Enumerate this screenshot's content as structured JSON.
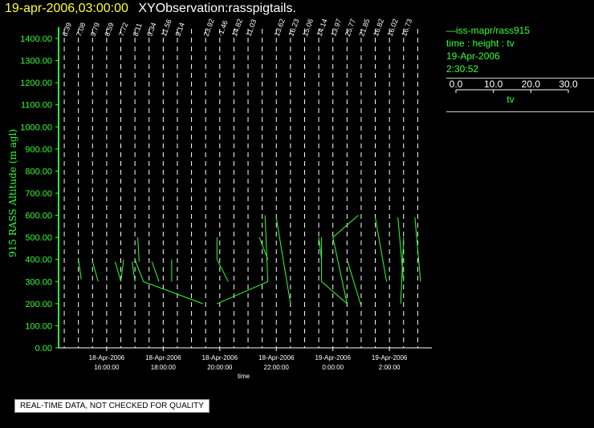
{
  "header": {
    "datetime": "19-apr-2006,03:00:00",
    "observation": "XYObservation:rasspigtails."
  },
  "legend": {
    "line_label": "iss-mapr/rass915",
    "variables": "time : height : tv",
    "date": "19-Apr-2006",
    "time": "2:30:52",
    "scale_ticks": [
      "0.0",
      "10.0",
      "20.0",
      "30.0"
    ],
    "scale_min": 0,
    "scale_max": 30,
    "scale_label": "tv"
  },
  "footer": {
    "quality_note": "REAL-TIME DATA, NOT CHECKED FOR QUALITY"
  },
  "colors": {
    "background": "#000000",
    "trace": "#33ff33",
    "axis": "#ffffff",
    "dashed_line": "#ffffff",
    "title_date": "#ffff33"
  },
  "chart_data": {
    "type": "line",
    "ylabel": "915 RASS Altitude (m agl)",
    "xlabel": "time",
    "ylim": [
      0,
      1450
    ],
    "yticks": [
      0,
      100,
      200,
      300,
      400,
      500,
      600,
      700,
      800,
      900,
      1000,
      1100,
      1200,
      1300,
      1400
    ],
    "ytick_labels": [
      "0.00",
      "100.00",
      "200.00",
      "300.00",
      "400.00",
      "500.00",
      "600.00",
      "700.00",
      "800.00",
      "900.00",
      "1000.00",
      "1100.00",
      "1200.00",
      "1300.00",
      "1400.00"
    ],
    "xlim_hours": [
      14.3,
      27.5
    ],
    "xticks": [
      {
        "hour": 16,
        "date": "18-Apr-2006",
        "time": "16:00:00"
      },
      {
        "hour": 18,
        "date": "18-Apr-2006",
        "time": "18:00:00"
      },
      {
        "hour": 20,
        "date": "18-Apr-2006",
        "time": "20:00:00"
      },
      {
        "hour": 22,
        "date": "18-Apr-2006",
        "time": "22:00:00"
      },
      {
        "hour": 24,
        "date": "19-Apr-2006",
        "time": "0:00:00"
      },
      {
        "hour": 26,
        "date": "19-Apr-2006",
        "time": "2:00:00"
      }
    ],
    "profile_times_hours": [
      14.5,
      15.0,
      15.5,
      16.0,
      16.5,
      17.0,
      17.5,
      18.0,
      18.5,
      19.0,
      19.5,
      20.0,
      20.5,
      21.0,
      21.5,
      22.0,
      22.5,
      23.0,
      23.5,
      24.0,
      24.5,
      25.0,
      25.5,
      26.0,
      26.5,
      27.0
    ],
    "top_labels": [
      "6.39",
      "7.08",
      "9.79",
      "8.59",
      "7.72",
      "8.11",
      "9.34",
      "11.56",
      "9.14",
      "23.92",
      "-1.46",
      "14.82",
      "11.03",
      "13.62",
      "16.23",
      "15.06",
      "14.14",
      "13.97",
      "25.77",
      "21.85",
      "16.82",
      "16.02",
      "16.73"
    ],
    "top_label_hours": [
      14.5,
      15.0,
      15.5,
      16.0,
      16.5,
      17.0,
      17.5,
      18.0,
      18.5,
      19.5,
      20.0,
      20.5,
      21.0,
      22.0,
      22.5,
      23.0,
      23.5,
      24.0,
      24.5,
      25.0,
      25.5,
      26.0,
      26.5
    ],
    "series": [
      {
        "segments": [
          [
            [
              15.0,
              400
            ],
            [
              15.1,
              310
            ]
          ],
          [
            [
              15.5,
              390
            ],
            [
              15.7,
              300
            ]
          ],
          [
            [
              16.3,
              390
            ],
            [
              16.5,
              300
            ]
          ],
          [
            [
              16.6,
              400
            ],
            [
              16.5,
              300
            ]
          ],
          [
            [
              16.9,
              390
            ],
            [
              17.0,
              300
            ]
          ],
          [
            [
              17.1,
              500
            ],
            [
              17.15,
              390
            ]
          ],
          [
            [
              17.0,
              400
            ],
            [
              17.3,
              300
            ],
            [
              19.4,
              200
            ]
          ],
          [
            [
              17.6,
              390
            ],
            [
              17.85,
              300
            ]
          ],
          [
            [
              18.3,
              400
            ],
            [
              18.3,
              300
            ]
          ],
          [
            [
              19.9,
              500
            ],
            [
              19.9,
              400
            ]
          ],
          [
            [
              19.9,
              400
            ],
            [
              20.3,
              300
            ]
          ],
          [
            [
              19.9,
              200
            ],
            [
              21.7,
              300
            ],
            [
              21.6,
              600
            ]
          ],
          [
            [
              21.4,
              500
            ],
            [
              21.7,
              400
            ]
          ],
          [
            [
              22.0,
              590
            ],
            [
              22.1,
              510
            ]
          ],
          [
            [
              22.1,
              510
            ],
            [
              22.5,
              200
            ]
          ],
          [
            [
              23.5,
              500
            ],
            [
              23.6,
              400
            ]
          ],
          [
            [
              23.6,
              500
            ],
            [
              23.6,
              300
            ],
            [
              24.5,
              200
            ]
          ],
          [
            [
              24.0,
              500
            ],
            [
              24.9,
              600
            ]
          ],
          [
            [
              24.0,
              500
            ],
            [
              24.5,
              200
            ]
          ],
          [
            [
              24.5,
              400
            ],
            [
              25.0,
              190
            ]
          ],
          [
            [
              25.5,
              590
            ],
            [
              25.9,
              300
            ]
          ],
          [
            [
              26.3,
              590
            ],
            [
              26.5,
              300
            ]
          ],
          [
            [
              26.5,
              500
            ],
            [
              26.4,
              200
            ]
          ],
          [
            [
              26.9,
              590
            ],
            [
              27.1,
              300
            ]
          ]
        ]
      }
    ]
  }
}
